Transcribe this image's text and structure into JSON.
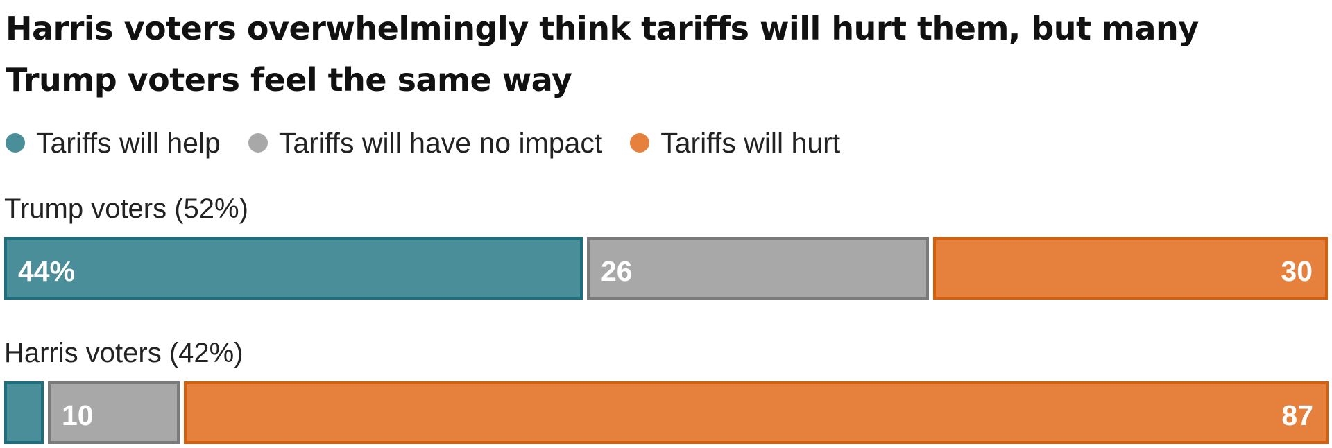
{
  "title": "Harris voters overwhelmingly think tariffs will hurt them, but many Trump voters feel the same way",
  "colors": {
    "help": "#4a8e9a",
    "help_border": "#1d6f7d",
    "none": "#a8a8a8",
    "none_border": "#7a7a7a",
    "hurt": "#e5803d",
    "hurt_border": "#d2600f"
  },
  "chart_data": {
    "type": "bar",
    "orientation": "horizontal",
    "stacked": true,
    "legend_position": "top-left",
    "series": [
      {
        "name": "Tariffs will help",
        "key": "help"
      },
      {
        "name": "Tariffs will have no impact",
        "key": "none"
      },
      {
        "name": "Tariffs will hurt",
        "key": "hurt"
      }
    ],
    "rows": [
      {
        "label": "Trump voters (52%)",
        "values": [
          44,
          26,
          30
        ],
        "labels": [
          "44%",
          "26",
          "30"
        ]
      },
      {
        "label": "Harris voters (42%)",
        "values": [
          3,
          10,
          87
        ],
        "labels": [
          "",
          "10",
          "87"
        ]
      }
    ]
  }
}
